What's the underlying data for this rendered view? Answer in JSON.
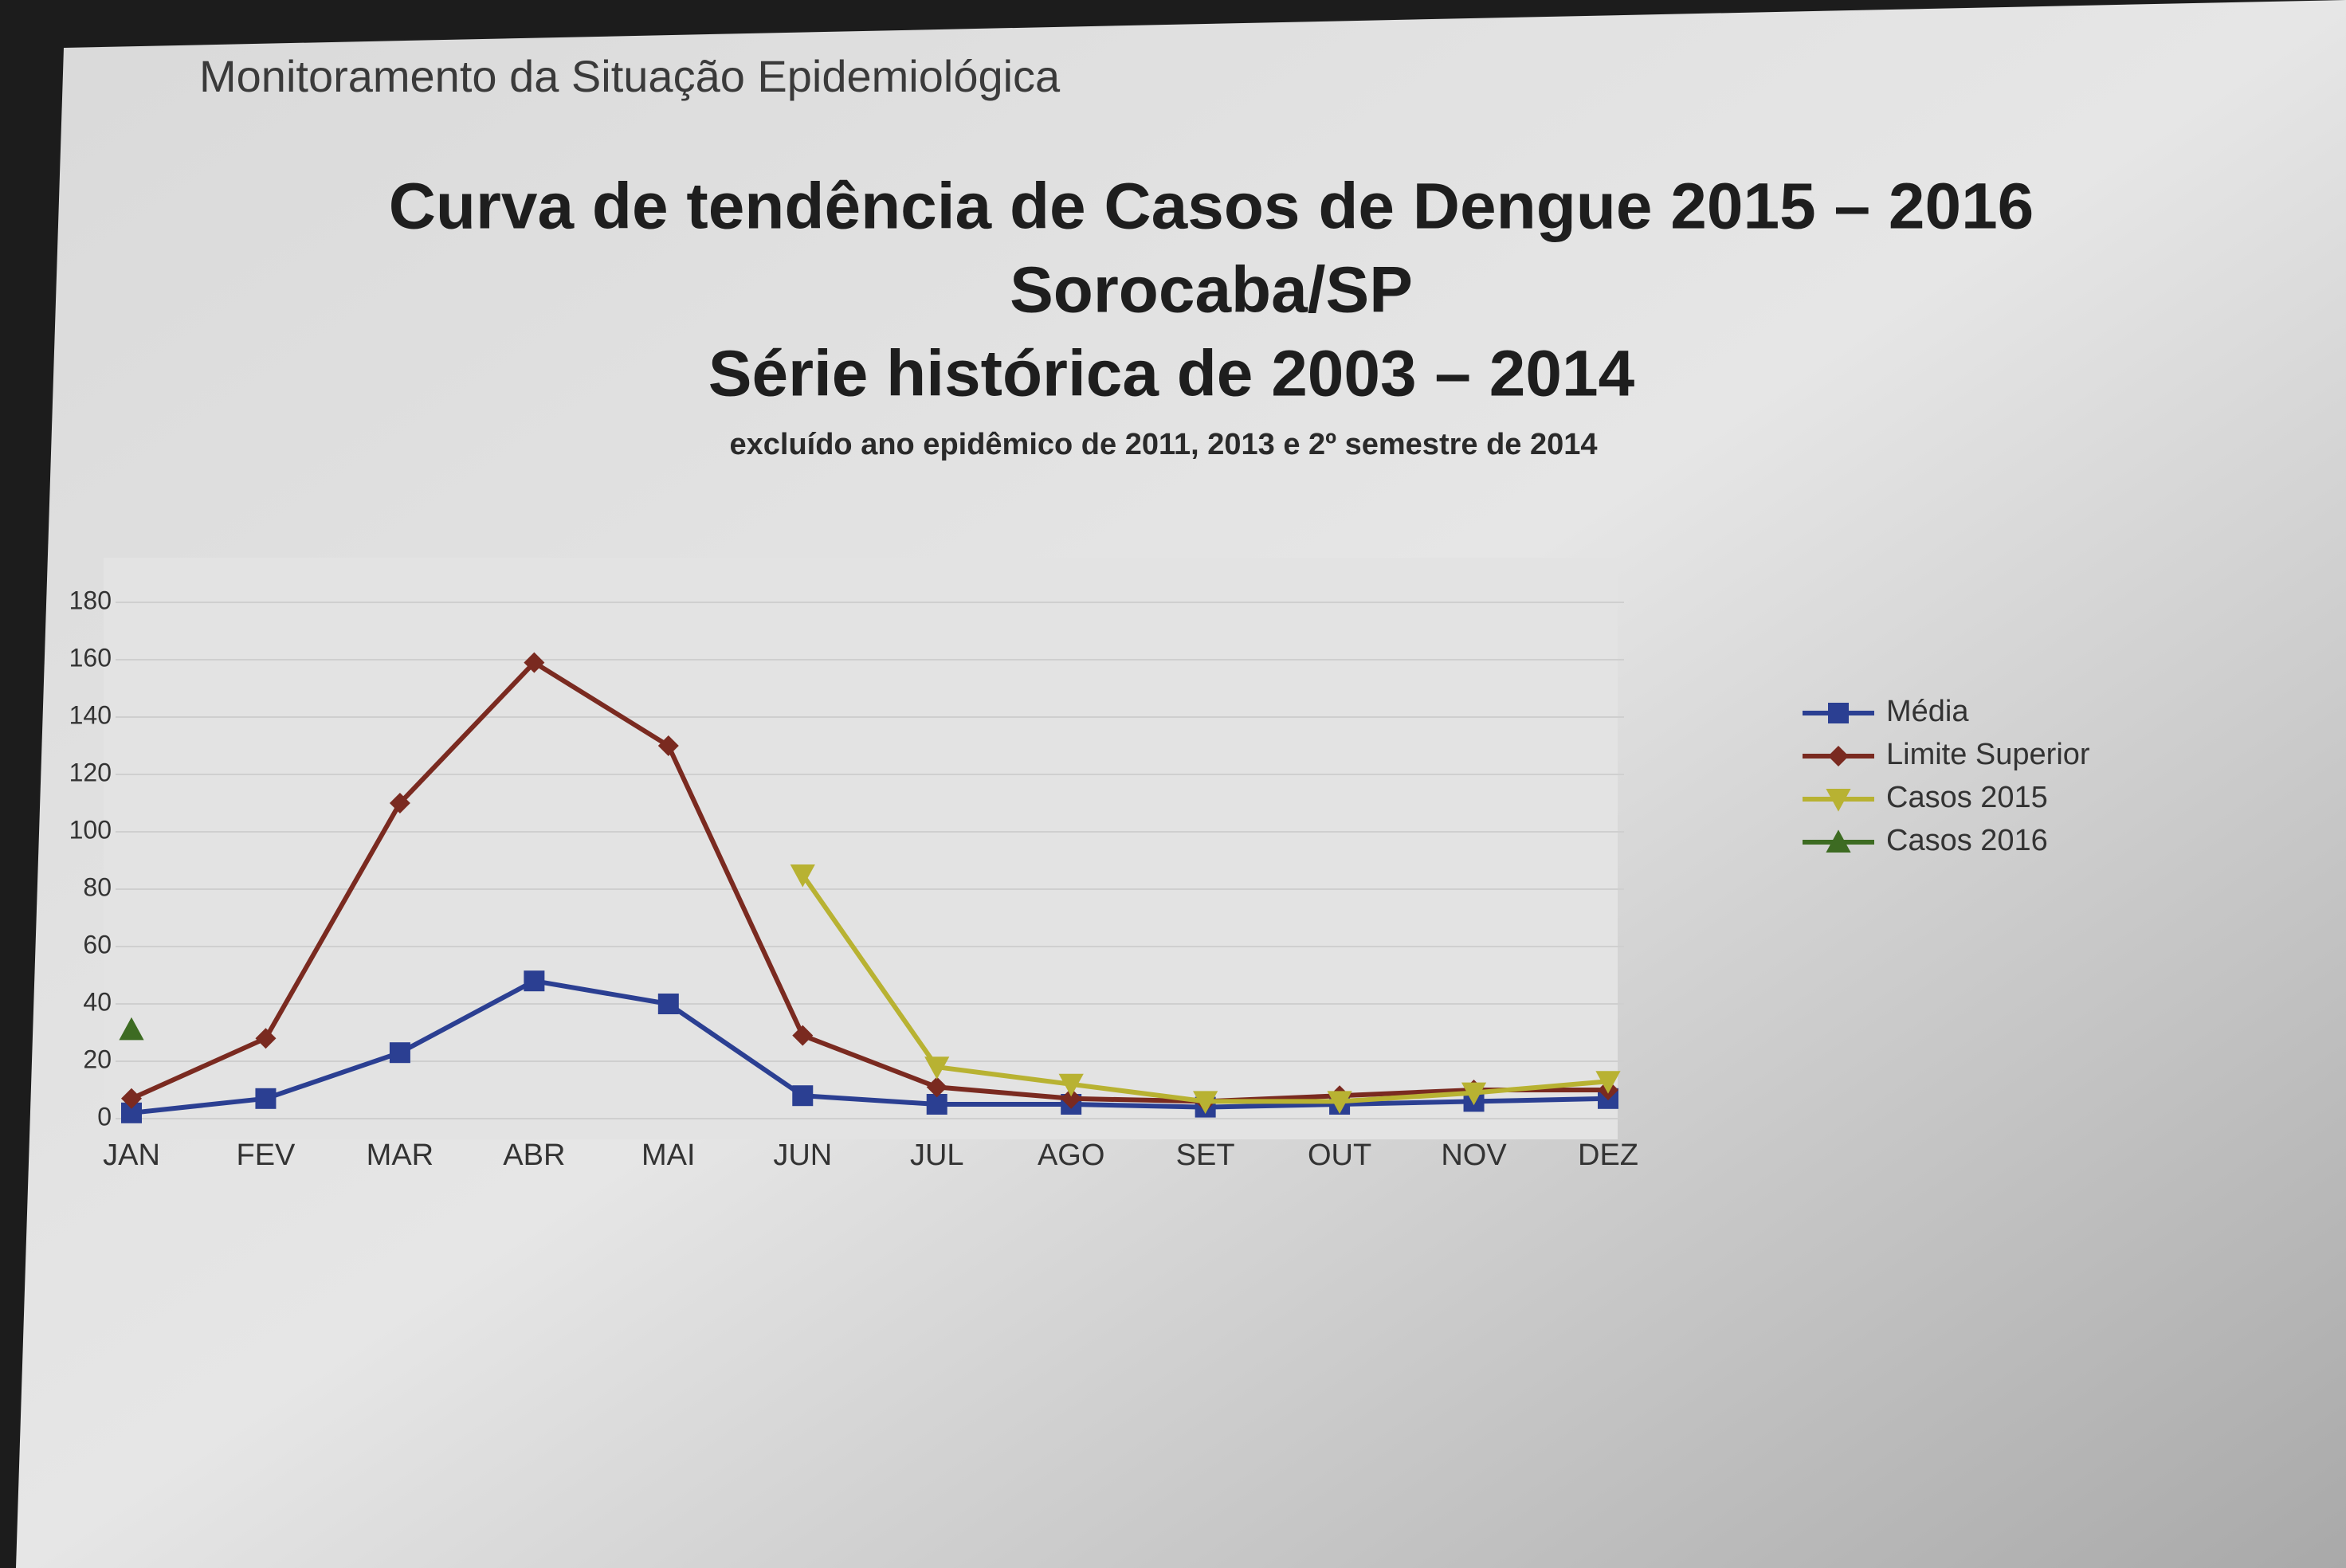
{
  "chart_data": {
    "type": "line",
    "header": "Monitoramento da Situação Epidemiológica",
    "title": [
      "Curva de tendência de Casos de Dengue 2015 – 2016",
      "Sorocaba/SP",
      "Série histórica de 2003 – 2014"
    ],
    "subtitle": "excluído ano epidêmico de 2011, 2013 e 2º semestre de 2014",
    "categories": [
      "JAN",
      "FEV",
      "MAR",
      "ABR",
      "MAI",
      "JUN",
      "JUL",
      "AGO",
      "SET",
      "OUT",
      "NOV",
      "DEZ"
    ],
    "series": [
      {
        "name": "Média",
        "color": "#2b3f92",
        "marker": "square",
        "values": [
          2,
          7,
          23,
          48,
          40,
          8,
          5,
          5,
          4,
          5,
          6,
          7
        ]
      },
      {
        "name": "Limite Superior",
        "color": "#7a2a20",
        "marker": "diamond",
        "values": [
          7,
          28,
          110,
          159,
          130,
          29,
          11,
          7,
          6,
          8,
          10,
          10
        ]
      },
      {
        "name": "Casos 2015",
        "color": "#b8b232",
        "marker": "triangle-down",
        "values": [
          null,
          null,
          null,
          null,
          null,
          85,
          18,
          12,
          6,
          6,
          9,
          13
        ]
      },
      {
        "name": "Casos 2016",
        "color": "#3d6b22",
        "marker": "triangle-up",
        "values": [
          31,
          null,
          null,
          null,
          null,
          null,
          null,
          null,
          null,
          null,
          null,
          null
        ]
      }
    ],
    "ylim": [
      0,
      180
    ],
    "yticks": [
      0,
      20,
      40,
      60,
      80,
      100,
      120,
      140,
      160,
      180
    ],
    "grid": true,
    "legend": "right"
  }
}
